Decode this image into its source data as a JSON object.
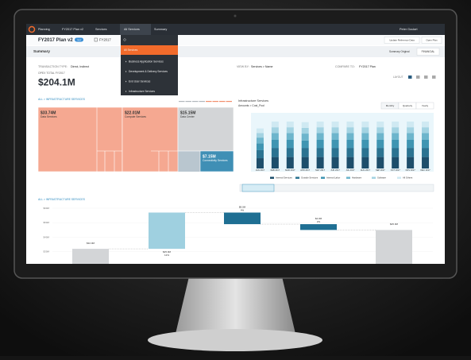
{
  "nav": {
    "menus": [
      "Planning",
      "FY2017 Plan v2",
      "Services",
      "All Services",
      "Summary"
    ],
    "user": "Peter Goulart"
  },
  "toolbar": {
    "plan": "FY2017 Plan v2",
    "badge": "new",
    "year": "FY2017",
    "buttons": [
      "Update Reference Data",
      "Open Plan"
    ]
  },
  "dropdown": {
    "items": [
      "All Services",
      "Business Application Services",
      "Development & Delivery Services",
      "End User Services",
      "Infrastructure Services"
    ]
  },
  "summary": {
    "title": "Summary",
    "view": "Summary Original",
    "tab": "FINANCIAL"
  },
  "filters": {
    "transaction_label": "TRANSACTION TYPE:",
    "transaction": "Direct, Indirect",
    "viewby_label": "VIEW BY:",
    "viewby": "Services > Name",
    "compare_label": "COMPARE TO:",
    "compare": "FY2017 Plan",
    "layout": "LAYOUT"
  },
  "kpi": {
    "label": "OPEX TOTAL FY2017",
    "value": "$204.1M"
  },
  "breadcrumb": "ALL > INFRASTRUCTURE SERVICES",
  "treemap": {
    "tiles": [
      {
        "name": "Data Services",
        "value": 33.74,
        "value_label": "$33.74M",
        "color": "#f5a891"
      },
      {
        "name": "Compute Services",
        "value": 22.01,
        "value_label": "$22.01M",
        "color": "#f5a891"
      },
      {
        "name": "Data Center",
        "value": 15.15,
        "value_label": "$15.15M",
        "color": "#d3d5d7"
      },
      {
        "name": "Connectivity Services",
        "value": 7.15,
        "value_label": "$7.15M",
        "color": "#3f8fb5"
      }
    ]
  },
  "bar_chart": {
    "type": "bar",
    "title": "Infrastructure Services",
    "subtitle": "Amounts > Cost_Pool",
    "buttons": [
      "Monthly",
      "Quarterly",
      "Yearly"
    ],
    "categories": [
      "JAN 2017",
      "FEB 2017",
      "MAR 2017",
      "APR 2017",
      "MAY 2017",
      "JUN 2017",
      "JUL 2017",
      "AUG 2017",
      "SEP 2017",
      "OCT 2017",
      "NOV 2017",
      "DEC 2017"
    ],
    "ylim": [
      0,
      100
    ],
    "series": [
      {
        "name": "Internal Services",
        "color": "#1d4e6b",
        "values": [
          18,
          20,
          20,
          20,
          20,
          20,
          20,
          20,
          20,
          20,
          20,
          20
        ]
      },
      {
        "name": "Outside Services",
        "color": "#2b7391",
        "values": [
          14,
          16,
          16,
          16,
          16,
          16,
          16,
          16,
          16,
          16,
          16,
          16
        ]
      },
      {
        "name": "Internal Labor",
        "color": "#3f95b2",
        "values": [
          12,
          14,
          14,
          13,
          14,
          14,
          14,
          14,
          14,
          14,
          14,
          14
        ]
      },
      {
        "name": "Hardware",
        "color": "#6db5cc",
        "values": [
          10,
          12,
          12,
          12,
          12,
          12,
          12,
          12,
          12,
          12,
          12,
          12
        ]
      },
      {
        "name": "Software",
        "color": "#a3d3e2",
        "values": [
          8,
          10,
          10,
          10,
          10,
          10,
          10,
          10,
          10,
          10,
          10,
          10
        ]
      },
      {
        "name": "All Others",
        "color": "#cfe9f2",
        "values": [
          8,
          10,
          10,
          10,
          10,
          10,
          10,
          10,
          10,
          10,
          10,
          10
        ]
      }
    ]
  },
  "waterfall": {
    "type": "waterfall",
    "ylim": [
      20,
      60
    ],
    "yticks": [
      {
        "value": 30,
        "label": "$30M"
      },
      {
        "value": 40,
        "label": "$40M"
      },
      {
        "value": 50,
        "label": "$50M"
      },
      {
        "value": 60,
        "label": "$60M"
      }
    ],
    "kinds": [
      "total",
      "delta",
      "delta",
      "delta",
      "total"
    ],
    "values": [
      32,
      25,
      -8,
      -4,
      45
    ],
    "value_labels": [
      "$32.0M",
      "$25.0M",
      "$8.0M",
      "$4.0M",
      "$45.0M"
    ],
    "pct_labels": [
      null,
      "12%",
      "4%",
      "2%",
      null
    ],
    "colors": [
      "#d3d5d7",
      "#9fd0e0",
      "#1f6f93",
      "#1f6f93",
      "#d3d5d7"
    ]
  }
}
